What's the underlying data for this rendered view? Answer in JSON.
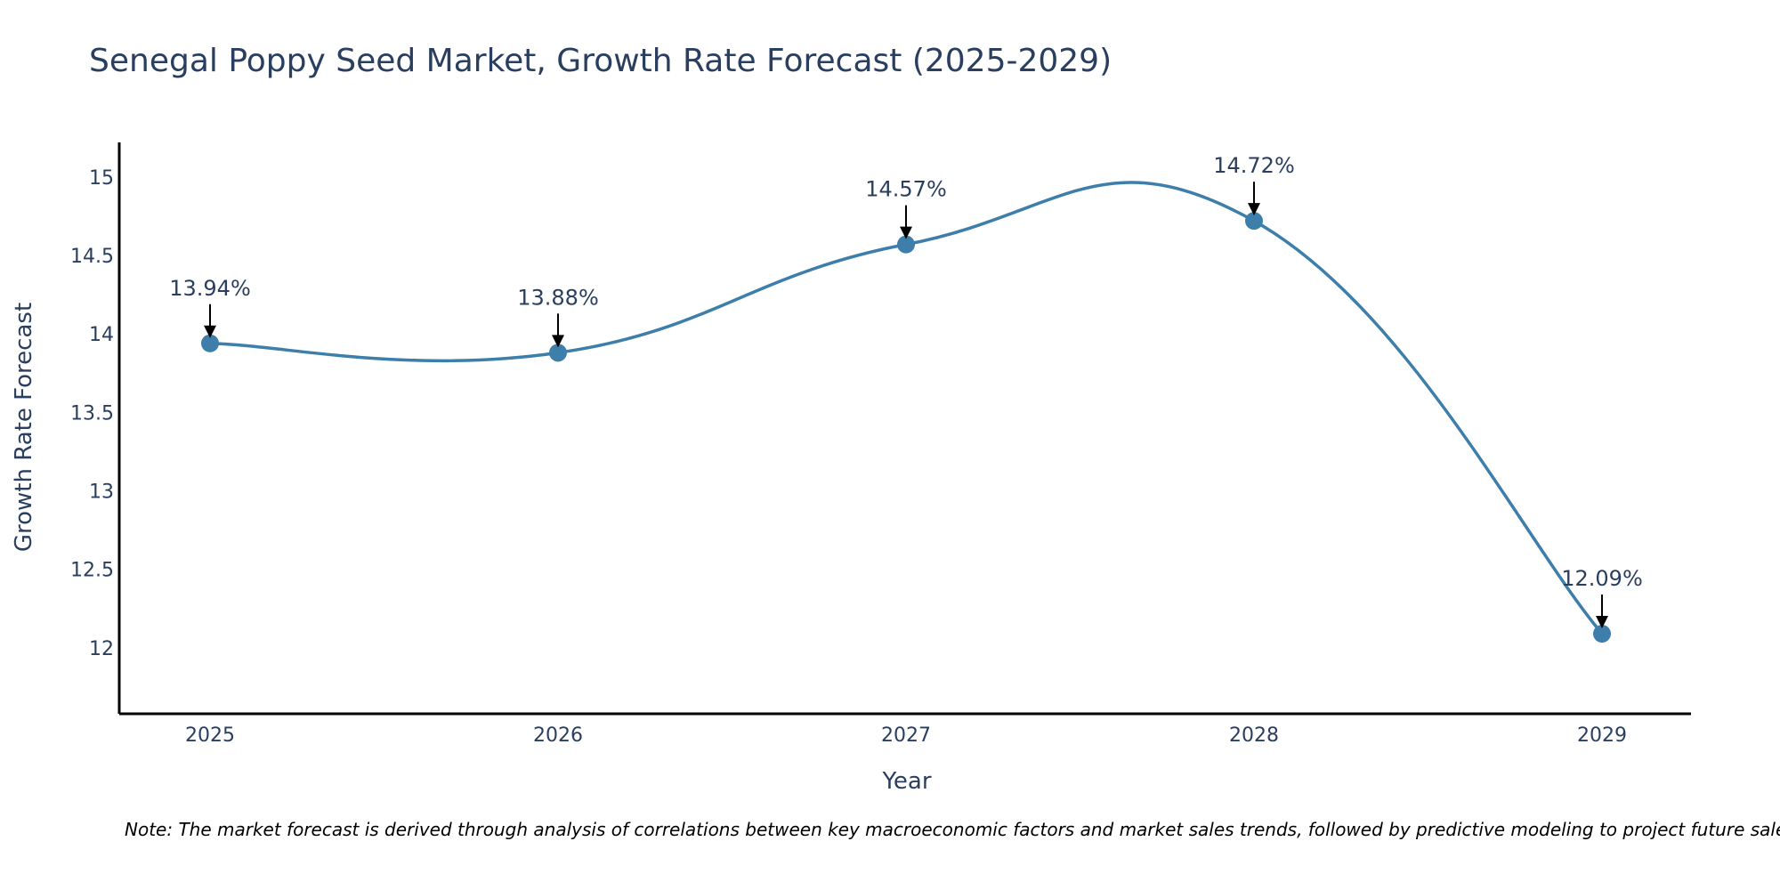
{
  "chart_data": {
    "type": "line",
    "title": "Senegal Poppy Seed Market, Growth Rate Forecast (2025-2029)",
    "xlabel": "Year",
    "ylabel": "Growth Rate Forecast",
    "categories": [
      "2025",
      "2026",
      "2027",
      "2028",
      "2029"
    ],
    "series": [
      {
        "name": "Growth Rate Forecast",
        "values": [
          13.94,
          13.88,
          14.57,
          14.72,
          12.09
        ]
      }
    ],
    "data_labels": [
      "13.94%",
      "13.88%",
      "14.57%",
      "14.72%",
      "12.09%"
    ],
    "ylim": [
      11.58,
      15.22
    ],
    "yticks": [
      12,
      12.5,
      13,
      13.5,
      14,
      14.5,
      15
    ],
    "ytick_labels": [
      "12",
      "12.5",
      "13",
      "13.5",
      "14",
      "14.5",
      "15"
    ],
    "grid": false,
    "line_shape": "spline",
    "colors": {
      "line": "#3d7eaa",
      "marker": "#3d7eaa",
      "axis": "#000000",
      "text": "#2a3f5f",
      "arrow": "#000000"
    }
  },
  "note": "Note: The market forecast is derived through analysis of correlations between key macroeconomic factors and market sales trends, followed by predictive modeling to project future sales."
}
